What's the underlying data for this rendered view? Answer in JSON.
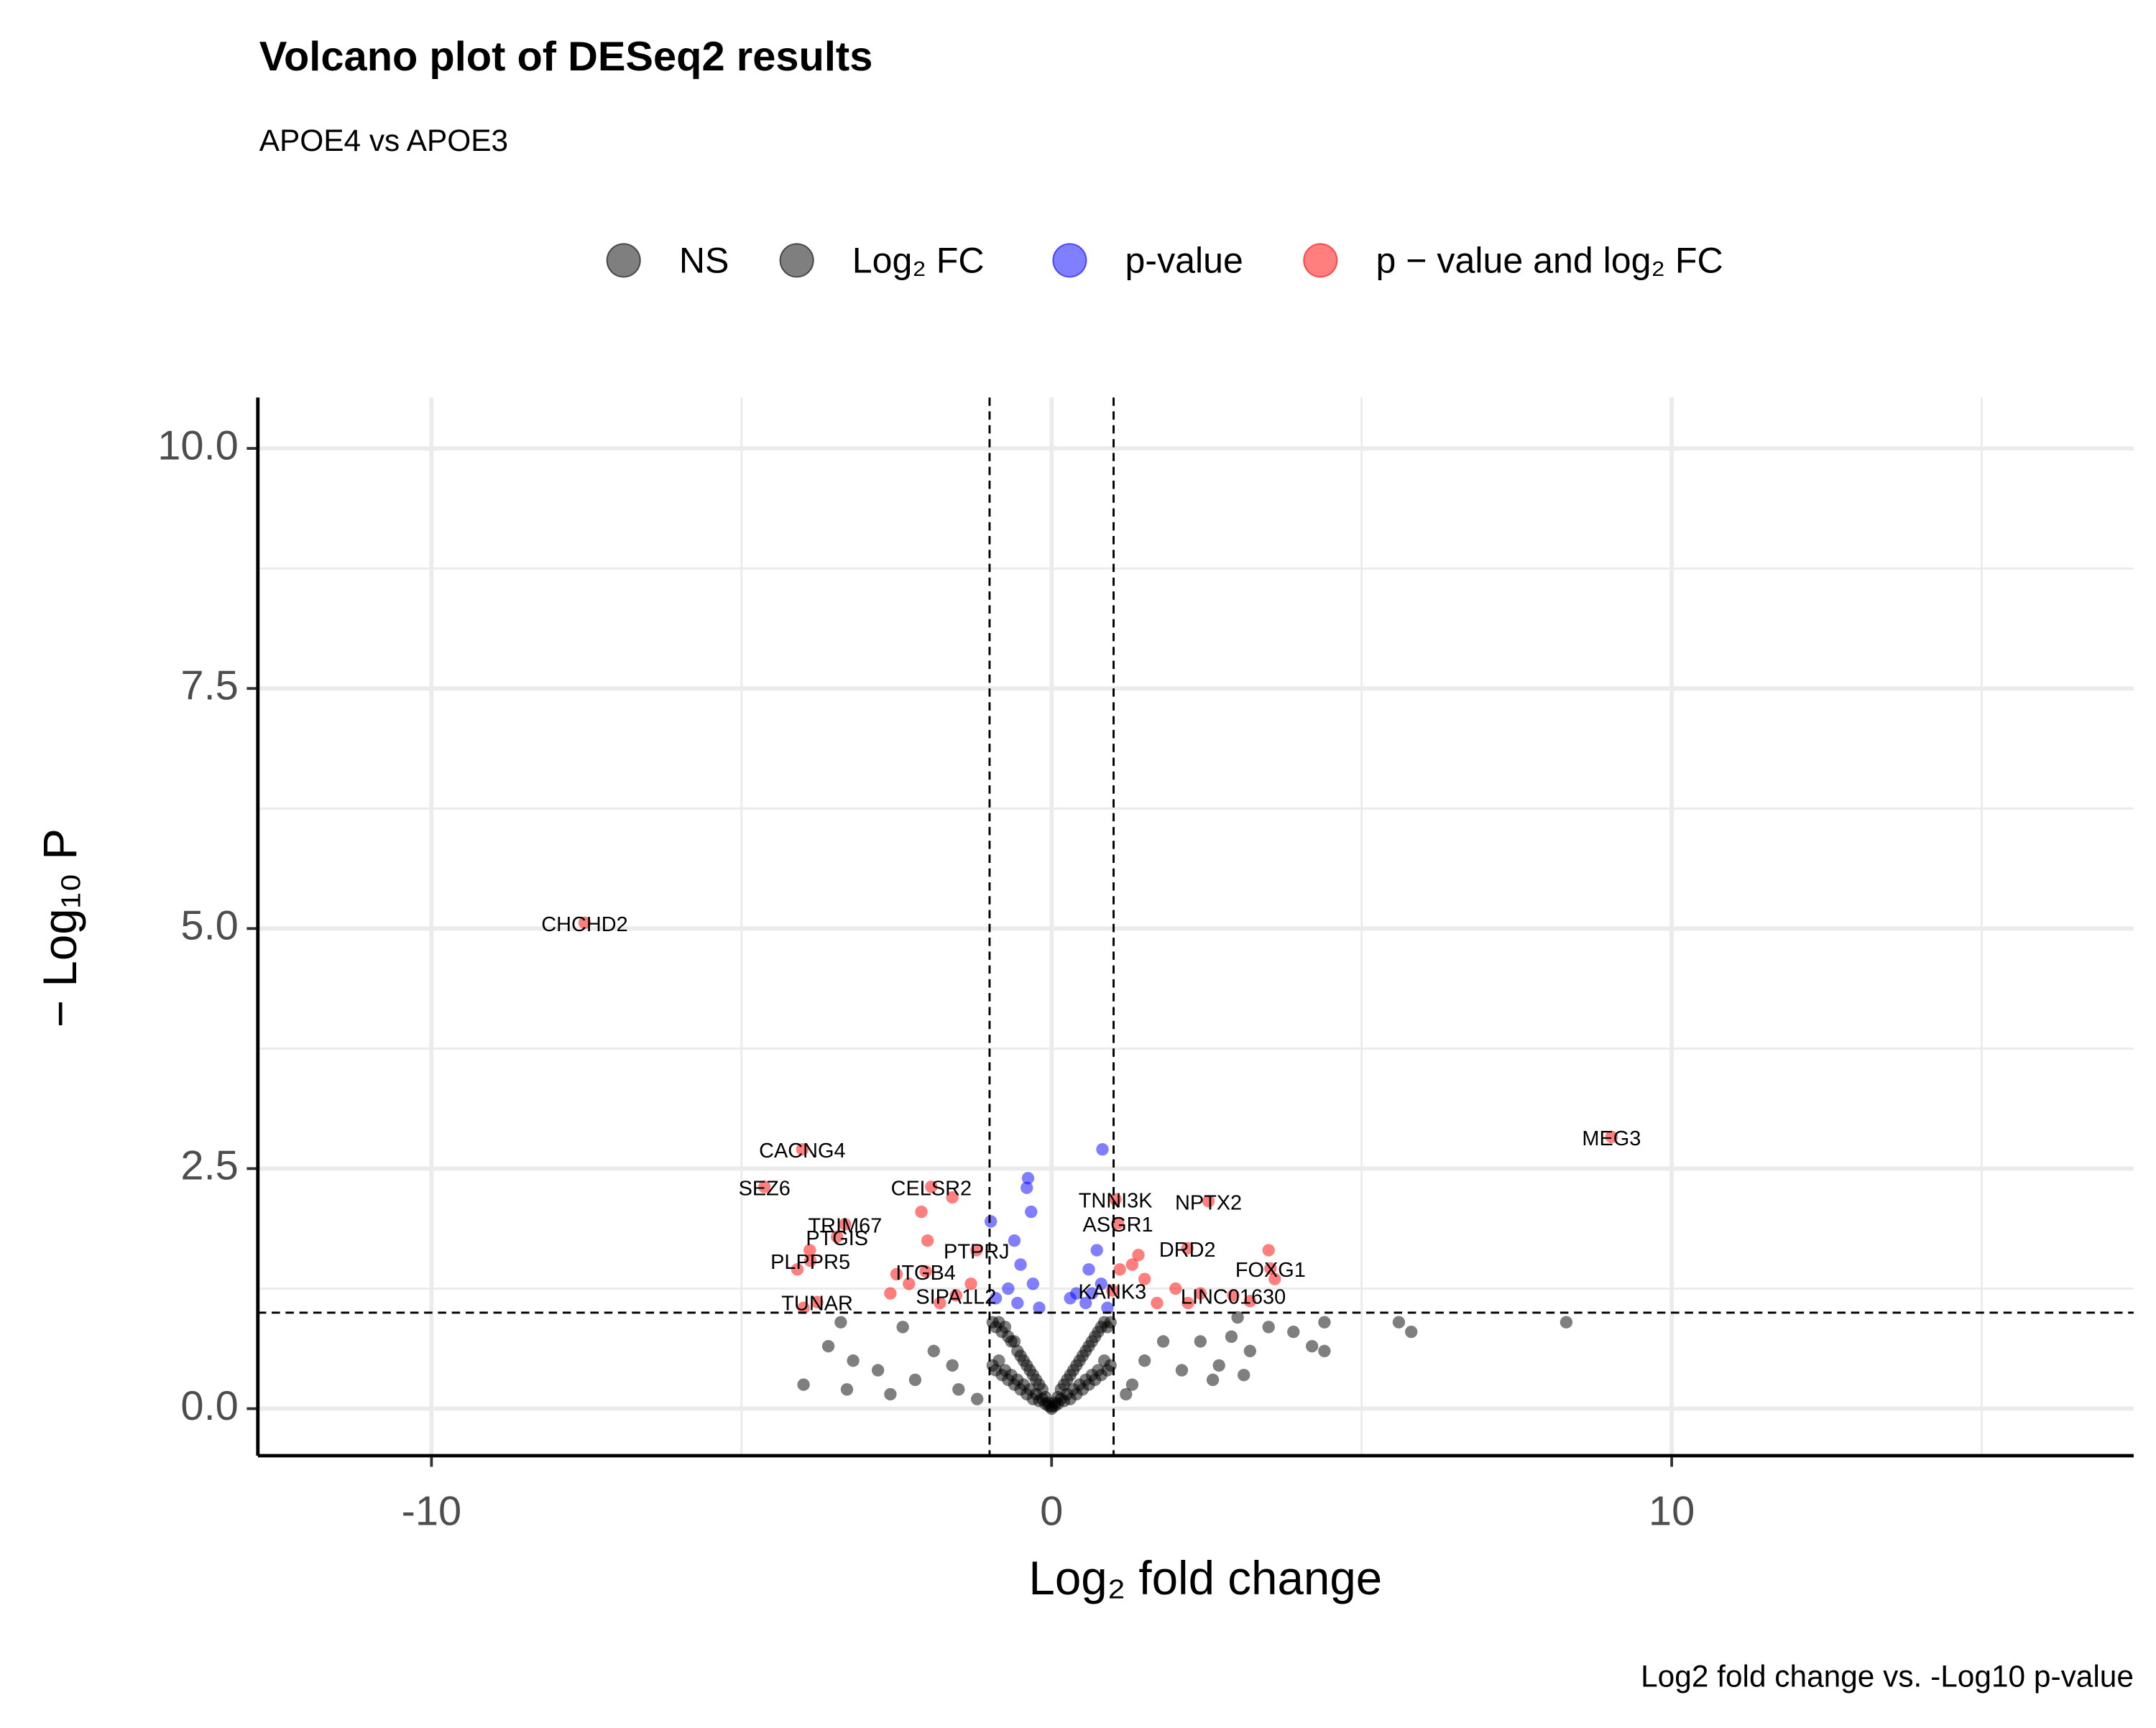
{
  "chart_data": {
    "type": "scatter",
    "title": "Volcano plot of DESeq2 results",
    "subtitle": "APOE4 vs APOE3",
    "x_label": "Log₂ fold change",
    "y_label": "− Log₁₀ P",
    "caption": "Log2 fold change vs. -Log10 p-value",
    "xlim": [
      -12.8,
      17.45
    ],
    "ylim": [
      -0.49,
      10.53
    ],
    "xticks": [
      -10,
      0,
      10
    ],
    "yticks": [
      {
        "value": 0,
        "label": "0.0"
      },
      {
        "value": 2.5,
        "label": "2.5"
      },
      {
        "value": 5,
        "label": "5.0"
      },
      {
        "value": 7.5,
        "label": "7.5"
      },
      {
        "value": 10,
        "label": "10.0"
      }
    ],
    "x_minor_grid": [
      -5,
      5,
      15
    ],
    "y_minor_grid": [
      1.25,
      3.75,
      6.25,
      8.75
    ],
    "grid": true,
    "cutoff_x": [
      -1,
      1
    ],
    "cutoff_y": [
      1
    ],
    "legend_position": "top",
    "series": [
      {
        "name": "NS",
        "color": "#000000",
        "x": [
          -0.95,
          -0.9,
          -0.85,
          -0.8,
          -0.75,
          -0.7,
          -0.65,
          -0.6,
          -0.55,
          -0.5,
          -0.45,
          -0.4,
          -0.35,
          -0.3,
          -0.25,
          -0.2,
          -0.15,
          -0.1,
          -0.05,
          0,
          0.05,
          0.1,
          0.15,
          0.2,
          0.25,
          0.3,
          0.35,
          0.4,
          0.45,
          0.5,
          0.55,
          0.6,
          0.65,
          0.7,
          0.75,
          0.8,
          0.85,
          0.9,
          0.95,
          -0.95,
          -0.9,
          -0.85,
          -0.8,
          -0.75,
          -0.7,
          -0.65,
          -0.6,
          -0.55,
          -0.5,
          -0.45,
          -0.4,
          -0.35,
          -0.3,
          -0.25,
          -0.2,
          -0.15,
          -0.1,
          -0.05,
          0,
          0.05,
          0.1,
          0.15,
          0.2,
          0.25,
          0.3,
          0.35,
          0.4,
          0.45,
          0.5,
          0.55,
          0.6,
          0.65,
          0.7,
          0.75,
          0.8,
          0.85,
          0.9,
          0.95
        ],
        "values": [
          0.9,
          0.85,
          0.9,
          0.8,
          0.85,
          0.75,
          0.7,
          0.7,
          0.6,
          0.55,
          0.5,
          0.45,
          0.4,
          0.35,
          0.3,
          0.25,
          0.2,
          0.12,
          0.06,
          0.02,
          0.06,
          0.12,
          0.2,
          0.25,
          0.3,
          0.35,
          0.4,
          0.45,
          0.5,
          0.55,
          0.6,
          0.65,
          0.7,
          0.75,
          0.8,
          0.85,
          0.9,
          0.85,
          0.9,
          0.45,
          0.4,
          0.5,
          0.35,
          0.4,
          0.3,
          0.35,
          0.25,
          0.3,
          0.2,
          0.25,
          0.15,
          0.2,
          0.1,
          0.15,
          0.08,
          0.1,
          0.05,
          0.03,
          0.0,
          0.03,
          0.05,
          0.1,
          0.08,
          0.15,
          0.1,
          0.2,
          0.15,
          0.25,
          0.2,
          0.3,
          0.25,
          0.35,
          0.3,
          0.4,
          0.35,
          0.5,
          0.4,
          0.45
        ]
      },
      {
        "name": "Log₂ FC",
        "color": "#000000",
        "x": [
          5.6,
          5.8,
          8.3,
          4.4,
          4.4,
          4.2,
          3.9,
          3.5,
          3.2,
          3.1,
          2.7,
          2.6,
          2.4,
          2.9,
          -4.0,
          -3.3,
          -3.6,
          -2.6,
          -2.8,
          -3.2,
          -2.2,
          -1.9,
          -1.5,
          -1.6,
          -2.4,
          1.5,
          1.8,
          2.1,
          1.3,
          -1.2,
          1.2,
          -3.4,
          3.0
        ],
        "values": [
          0.9,
          0.8,
          0.9,
          0.6,
          0.9,
          0.65,
          0.8,
          0.85,
          0.6,
          0.35,
          0.45,
          0.3,
          0.7,
          0.75,
          0.25,
          0.2,
          0.65,
          0.15,
          0.4,
          0.5,
          0.3,
          0.6,
          0.2,
          0.45,
          0.85,
          0.5,
          0.7,
          0.4,
          0.25,
          0.1,
          0.15,
          0.9,
          0.95
        ]
      },
      {
        "name": "p-value",
        "color": "#0000ff",
        "x": [
          0.82,
          -0.4,
          -0.38,
          -0.33,
          -0.98,
          -0.6,
          0.73,
          -0.5,
          0.6,
          0.8,
          -0.3,
          -0.7,
          0.4,
          -0.9,
          0.55,
          -0.2,
          0.9,
          0.3,
          -0.55,
          0.65
        ],
        "values": [
          2.7,
          2.3,
          2.4,
          2.05,
          1.95,
          1.75,
          1.65,
          1.5,
          1.45,
          1.3,
          1.3,
          1.25,
          1.2,
          1.15,
          1.1,
          1.05,
          1.05,
          1.15,
          1.1,
          1.2
        ]
      },
      {
        "name": "p − value and log₂ FC",
        "color": "#ff0000",
        "x": [
          -7.53,
          9.03,
          -4.02,
          -4.63,
          -1.94,
          -3.33,
          -3.46,
          -3.89,
          -3.78,
          -2.03,
          -1.54,
          -1.21,
          1.03,
          2.53,
          1.07,
          2.19,
          3.53,
          2.93,
          0.98,
          -2.3,
          -2.6,
          -2.1,
          -1.6,
          -2.0,
          -3.9,
          -4.1,
          -4.0,
          -2.5,
          -1.8,
          1.3,
          1.5,
          1.4,
          2.0,
          2.2,
          3.5,
          3.6,
          1.1,
          2.4,
          3.2,
          -1.3,
          1.7
        ],
        "values": [
          5.06,
          2.83,
          2.7,
          2.31,
          2.31,
          1.92,
          1.79,
          1.54,
          1.11,
          1.43,
          1.18,
          1.65,
          2.18,
          2.16,
          1.93,
          1.67,
          1.46,
          1.18,
          1.23,
          1.3,
          1.2,
          2.05,
          2.2,
          1.75,
          1.65,
          1.45,
          1.05,
          1.4,
          1.1,
          1.5,
          1.35,
          1.6,
          1.25,
          1.1,
          1.65,
          1.35,
          1.45,
          1.2,
          1.12,
          1.3,
          1.1
        ],
        "labels": [
          "CHCHD2",
          "MEG3",
          "CACNG4",
          "SEZ6",
          "CELSR2",
          "TRIM67",
          "PTGIS",
          "PLPPR5",
          "TUNAR",
          "ITGB4",
          "SIPA1L2",
          "PTPRJ",
          "TNNI3K",
          "NPTX2",
          "ASGR1",
          "DRD2",
          "FOXG1",
          "LINC01630",
          "KANK3",
          null,
          null,
          null,
          null,
          null,
          null,
          null,
          null,
          null,
          null,
          null,
          null,
          null,
          null,
          null,
          null,
          null,
          null,
          null,
          null,
          null,
          null
        ]
      }
    ]
  }
}
